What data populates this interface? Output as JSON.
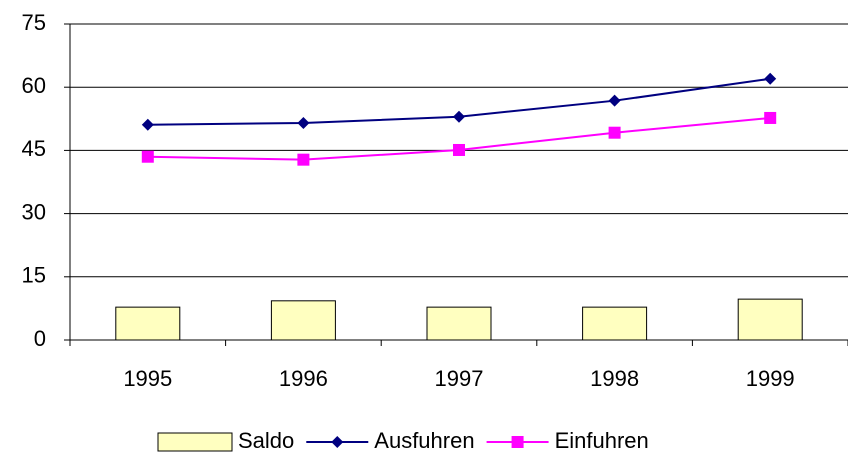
{
  "chart_data": {
    "type": "bar-line",
    "categories": [
      "1995",
      "1996",
      "1997",
      "1998",
      "1999"
    ],
    "series": [
      {
        "name": "Saldo",
        "type": "bar",
        "color": "#ffffc0",
        "values": [
          7.8,
          9.3,
          7.8,
          7.8,
          9.7
        ]
      },
      {
        "name": "Ausfuhren",
        "type": "line",
        "marker": "diamond",
        "color": "#000080",
        "values": [
          51.1,
          51.5,
          53.0,
          56.8,
          62.0
        ]
      },
      {
        "name": "Einfuhren",
        "type": "line",
        "marker": "square",
        "color": "#ff00ff",
        "values": [
          43.5,
          42.8,
          45.1,
          49.2,
          52.7
        ]
      }
    ],
    "ylim": [
      0,
      75
    ],
    "yticks": [
      0,
      15,
      30,
      45,
      60,
      75
    ],
    "grid": true,
    "legend": "bottom"
  }
}
